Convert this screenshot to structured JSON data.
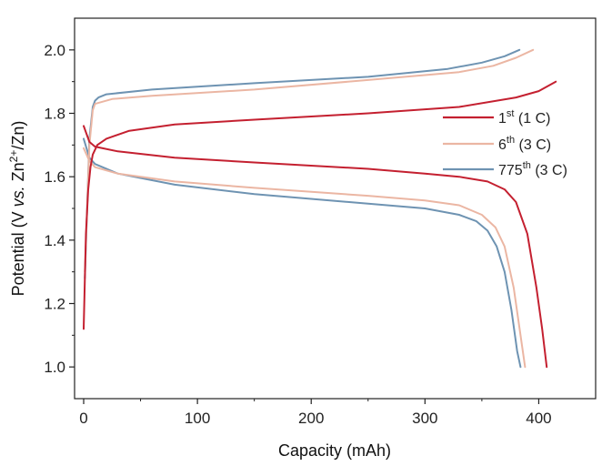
{
  "chart_data": {
    "type": "line",
    "xlabel": "Capacity (mAh)",
    "ylabel": {
      "prefix": "Potential (V ",
      "italic": "vs.",
      "mid": " Zn",
      "sup1": "2+",
      "suffix": "/Zn)"
    },
    "xlim": [
      -8,
      450
    ],
    "ylim": [
      0.9,
      2.1
    ],
    "xticks": [
      0,
      100,
      200,
      300,
      400
    ],
    "yticks": [
      1.0,
      1.2,
      1.4,
      1.6,
      1.8,
      2.0
    ],
    "xtick_labels": [
      "0",
      "100",
      "200",
      "300",
      "400"
    ],
    "ytick_labels": [
      "1.0",
      "1.2",
      "1.4",
      "1.6",
      "1.8",
      "2.0"
    ],
    "grid": false,
    "legend_position": "right",
    "legend": [
      {
        "base": "1",
        "sup": "st",
        "rest": " (1 C)"
      },
      {
        "base": "6",
        "sup": "th",
        "rest": " (3 C)"
      },
      {
        "base": "775",
        "sup": "th",
        "rest": " (3 C)"
      }
    ],
    "series": [
      {
        "color": "#c42030",
        "charge": {
          "x": [
            0,
            2,
            4,
            6,
            8,
            12,
            20,
            40,
            80,
            150,
            250,
            330,
            380,
            400,
            415
          ],
          "y": [
            1.12,
            1.42,
            1.56,
            1.63,
            1.67,
            1.7,
            1.72,
            1.745,
            1.765,
            1.78,
            1.8,
            1.82,
            1.85,
            1.87,
            1.9
          ]
        },
        "discharge": {
          "x": [
            0,
            5,
            10,
            30,
            80,
            150,
            250,
            300,
            330,
            355,
            370,
            380,
            390,
            398,
            403,
            407
          ],
          "y": [
            1.76,
            1.71,
            1.695,
            1.68,
            1.66,
            1.645,
            1.625,
            1.61,
            1.6,
            1.585,
            1.56,
            1.52,
            1.42,
            1.25,
            1.12,
            1.0
          ]
        }
      },
      {
        "color": "#ebb6a3",
        "charge": {
          "x": [
            1,
            3,
            5,
            8,
            10,
            15,
            25,
            60,
            150,
            250,
            330,
            360,
            380,
            395
          ],
          "y": [
            1.3,
            1.5,
            1.7,
            1.81,
            1.83,
            1.835,
            1.845,
            1.855,
            1.875,
            1.905,
            1.93,
            1.95,
            1.975,
            2.0
          ]
        },
        "discharge": {
          "x": [
            0,
            5,
            10,
            30,
            80,
            150,
            250,
            300,
            330,
            350,
            362,
            370,
            378,
            384,
            388
          ],
          "y": [
            1.69,
            1.65,
            1.63,
            1.61,
            1.585,
            1.565,
            1.54,
            1.525,
            1.51,
            1.48,
            1.44,
            1.38,
            1.25,
            1.1,
            1.0
          ]
        }
      },
      {
        "color": "#6e93b2",
        "charge": {
          "x": [
            1,
            3,
            5,
            8,
            10,
            13,
            20,
            60,
            150,
            250,
            320,
            350,
            370,
            383
          ],
          "y": [
            1.28,
            1.5,
            1.72,
            1.82,
            1.84,
            1.85,
            1.86,
            1.875,
            1.895,
            1.915,
            1.94,
            1.96,
            1.98,
            2.0
          ]
        },
        "discharge": {
          "x": [
            0,
            5,
            10,
            30,
            80,
            150,
            250,
            300,
            330,
            345,
            355,
            363,
            370,
            376,
            381,
            384
          ],
          "y": [
            1.72,
            1.66,
            1.64,
            1.61,
            1.575,
            1.545,
            1.515,
            1.5,
            1.48,
            1.46,
            1.43,
            1.38,
            1.3,
            1.18,
            1.05,
            1.0
          ]
        }
      }
    ]
  }
}
